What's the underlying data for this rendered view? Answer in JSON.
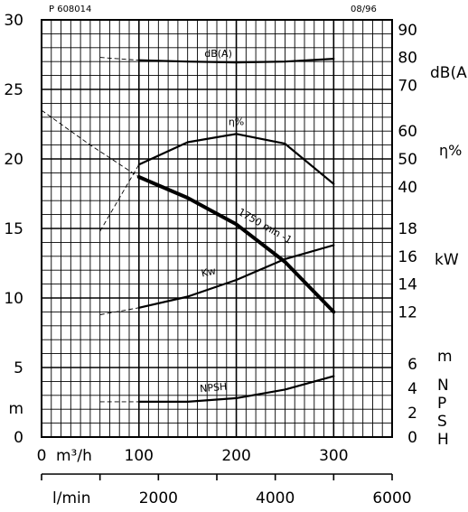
{
  "header": {
    "code": "P 608014",
    "date": "08/96"
  },
  "chart_data": {
    "type": "line",
    "x_units": {
      "flow_m3h": "m³/h",
      "flow_lmin": "l/min"
    },
    "x_axis_m3h": {
      "ticks": [
        "0",
        "100",
        "200",
        "300"
      ],
      "range": [
        0,
        360
      ]
    },
    "x_axis_lmin": {
      "ticks": [
        "2000",
        "4000",
        "6000"
      ],
      "range": [
        0,
        6000
      ]
    },
    "y_axis_head": {
      "unit": "m",
      "ticks": [
        "0",
        "5",
        "10",
        "15",
        "20",
        "25",
        "30"
      ],
      "range": [
        0,
        30
      ]
    },
    "right_axis_db": {
      "unit": "dB(A)",
      "ticks": [
        "70",
        "80",
        "90"
      ]
    },
    "right_axis_eff": {
      "unit": "η%",
      "ticks": [
        "40",
        "50",
        "60"
      ]
    },
    "right_axis_kw": {
      "unit": "kW",
      "ticks": [
        "12",
        "14",
        "16",
        "18"
      ]
    },
    "right_axis_npsh": {
      "unit": "m",
      "letters": [
        "N",
        "P",
        "S",
        "H"
      ],
      "ticks": [
        "0",
        "2",
        "4",
        "6"
      ]
    },
    "series": [
      {
        "name": "dB(A)",
        "axis": "db",
        "points": [
          [
            100,
            79
          ],
          [
            150,
            78.5
          ],
          [
            200,
            78.2
          ],
          [
            250,
            78.5
          ],
          [
            300,
            79.5
          ]
        ],
        "dashed_points": [
          [
            60,
            80
          ],
          [
            100,
            79
          ]
        ]
      },
      {
        "name": "η%",
        "axis": "eff",
        "points": [
          [
            100,
            48
          ],
          [
            150,
            56
          ],
          [
            200,
            59
          ],
          [
            250,
            55.5
          ],
          [
            300,
            41
          ]
        ],
        "dashed_points": [
          [
            60,
            24
          ],
          [
            100,
            48
          ]
        ]
      },
      {
        "name": "1750 min -1",
        "axis": "head",
        "bold": true,
        "points": [
          [
            100,
            18.7
          ],
          [
            150,
            17.2
          ],
          [
            200,
            15.3
          ],
          [
            250,
            12.6
          ],
          [
            300,
            9.0
          ]
        ],
        "dashed_points": [
          [
            0,
            23.5
          ],
          [
            50,
            21
          ],
          [
            100,
            18.7
          ]
        ]
      },
      {
        "name": "Kw",
        "axis": "kw",
        "points": [
          [
            100,
            12.3
          ],
          [
            150,
            13.1
          ],
          [
            200,
            14.3
          ],
          [
            250,
            15.8
          ],
          [
            300,
            16.8
          ]
        ],
        "dashed_points": [
          [
            60,
            11.8
          ],
          [
            100,
            12.3
          ]
        ]
      },
      {
        "name": "NPSH",
        "axis": "npsh",
        "points": [
          [
            100,
            2.9
          ],
          [
            150,
            2.9
          ],
          [
            200,
            3.2
          ],
          [
            250,
            3.9
          ],
          [
            300,
            5.0
          ]
        ],
        "dashed_points": [
          [
            60,
            2.9
          ],
          [
            100,
            2.9
          ]
        ]
      }
    ],
    "grid": true
  }
}
